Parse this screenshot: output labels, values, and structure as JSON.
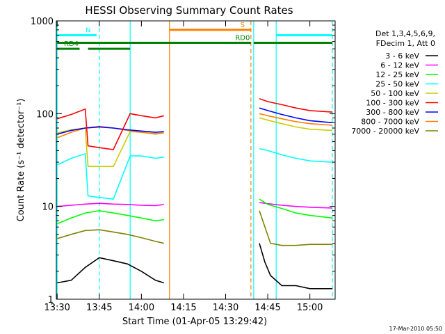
{
  "chart_data": {
    "type": "line",
    "title": "HESSI Observing Summary Count Rates",
    "xlabel": "Start Time (01-Apr-05 13:29:42)",
    "ylabel": "Count Rate (s⁻¹ detector⁻¹)",
    "y_scale": "log",
    "ylim": [
      1,
      1000
    ],
    "xlim": [
      "13:29:42",
      "15:09:00"
    ],
    "x_ticks": [
      "13:30",
      "13:45",
      "14:00",
      "14:15",
      "14:30",
      "14:45",
      "15:00"
    ],
    "y_ticks": [
      "1",
      "10",
      "100",
      "1000"
    ],
    "legend_header": [
      "Det 1,3,4,5,6,9,",
      "FDecim 1, Att 0"
    ],
    "legend_position": "right",
    "series": [
      {
        "name": "3 - 6 keV",
        "color": "#000000",
        "points": [
          [
            "13:30",
            1.5
          ],
          [
            "13:35",
            1.6
          ],
          [
            "13:40",
            2.2
          ],
          [
            "13:45",
            2.8
          ],
          [
            "13:50",
            2.6
          ],
          [
            "13:55",
            2.4
          ],
          [
            "14:00",
            2.0
          ],
          [
            "14:05",
            1.6
          ],
          [
            "14:08",
            1.5
          ],
          [
            "14:42",
            4.0
          ],
          [
            "14:44",
            2.5
          ],
          [
            "14:46",
            1.8
          ],
          [
            "14:50",
            1.4
          ],
          [
            "14:55",
            1.4
          ],
          [
            "15:00",
            1.3
          ],
          [
            "15:08",
            1.3
          ]
        ]
      },
      {
        "name": "6 - 12 keV",
        "color": "#ff00ff",
        "points": [
          [
            "13:30",
            10
          ],
          [
            "13:35",
            10.3
          ],
          [
            "13:40",
            10.6
          ],
          [
            "13:45",
            10.8
          ],
          [
            "13:50",
            10.6
          ],
          [
            "13:55",
            10.5
          ],
          [
            "14:00",
            10.3
          ],
          [
            "14:05",
            10.2
          ],
          [
            "14:08",
            10.5
          ],
          [
            "14:42",
            11
          ],
          [
            "14:45",
            10.7
          ],
          [
            "14:50",
            10.3
          ],
          [
            "14:55",
            10
          ],
          [
            "15:00",
            9.8
          ],
          [
            "15:08",
            9.6
          ]
        ]
      },
      {
        "name": "12 - 25 keV",
        "color": "#00ff00",
        "points": [
          [
            "13:30",
            6.5
          ],
          [
            "13:35",
            7.5
          ],
          [
            "13:40",
            8.5
          ],
          [
            "13:45",
            9.0
          ],
          [
            "13:50",
            8.5
          ],
          [
            "13:55",
            8.0
          ],
          [
            "14:00",
            7.5
          ],
          [
            "14:05",
            7.0
          ],
          [
            "14:08",
            7.2
          ],
          [
            "14:42",
            12
          ],
          [
            "14:45",
            10.5
          ],
          [
            "14:50",
            9.5
          ],
          [
            "14:55",
            8.5
          ],
          [
            "15:00",
            8.0
          ],
          [
            "15:08",
            7.5
          ]
        ]
      },
      {
        "name": "25 - 50 keV",
        "color": "#00ffff",
        "points": [
          [
            "13:30",
            28
          ],
          [
            "13:35",
            33
          ],
          [
            "13:40",
            37
          ],
          [
            "13:41",
            13
          ],
          [
            "13:45",
            12.5
          ],
          [
            "13:50",
            12
          ],
          [
            "13:56",
            35
          ],
          [
            "14:00",
            35
          ],
          [
            "14:05",
            33
          ],
          [
            "14:08",
            34
          ],
          [
            "14:42",
            42
          ],
          [
            "14:45",
            40
          ],
          [
            "14:50",
            36
          ],
          [
            "14:55",
            33
          ],
          [
            "15:00",
            31
          ],
          [
            "15:08",
            30
          ]
        ]
      },
      {
        "name": "50 - 100 keV",
        "color": "#cccc00",
        "points": [
          [
            "13:30",
            62
          ],
          [
            "13:35",
            67
          ],
          [
            "13:40",
            70
          ],
          [
            "13:41",
            27
          ],
          [
            "13:45",
            27
          ],
          [
            "13:50",
            27
          ],
          [
            "13:56",
            64
          ],
          [
            "14:00",
            63
          ],
          [
            "14:05",
            60
          ],
          [
            "14:08",
            62
          ],
          [
            "14:42",
            90
          ],
          [
            "14:45",
            85
          ],
          [
            "14:50",
            78
          ],
          [
            "14:55",
            72
          ],
          [
            "15:00",
            68
          ],
          [
            "15:08",
            66
          ]
        ]
      },
      {
        "name": "100 - 300 keV",
        "color": "#ff0000",
        "points": [
          [
            "13:30",
            88
          ],
          [
            "13:35",
            98
          ],
          [
            "13:40",
            112
          ],
          [
            "13:41",
            45
          ],
          [
            "13:45",
            43
          ],
          [
            "13:50",
            41
          ],
          [
            "13:56",
            100
          ],
          [
            "14:00",
            95
          ],
          [
            "14:05",
            90
          ],
          [
            "14:08",
            95
          ],
          [
            "14:42",
            145
          ],
          [
            "14:45",
            135
          ],
          [
            "14:50",
            125
          ],
          [
            "14:55",
            115
          ],
          [
            "15:00",
            108
          ],
          [
            "15:08",
            104
          ]
        ]
      },
      {
        "name": "300 - 800 keV",
        "color": "#0000ff",
        "points": [
          [
            "13:30",
            60
          ],
          [
            "13:35",
            66
          ],
          [
            "13:40",
            70
          ],
          [
            "13:45",
            72
          ],
          [
            "13:50",
            70
          ],
          [
            "13:55",
            67
          ],
          [
            "14:00",
            65
          ],
          [
            "14:05",
            63
          ],
          [
            "14:08",
            64
          ],
          [
            "14:42",
            115
          ],
          [
            "14:45",
            108
          ],
          [
            "14:50",
            98
          ],
          [
            "14:55",
            90
          ],
          [
            "15:00",
            84
          ],
          [
            "15:08",
            80
          ]
        ]
      },
      {
        "name": "800 - 7000 keV",
        "color": "#ff8000",
        "points": [
          [
            "13:30",
            55
          ],
          [
            "13:35",
            63
          ],
          [
            "13:40",
            70
          ],
          [
            "13:45",
            73
          ],
          [
            "13:50",
            70
          ],
          [
            "13:55",
            66
          ],
          [
            "14:00",
            63
          ],
          [
            "14:05",
            61
          ],
          [
            "14:08",
            62
          ],
          [
            "14:42",
            100
          ],
          [
            "14:45",
            95
          ],
          [
            "14:50",
            88
          ],
          [
            "14:55",
            82
          ],
          [
            "15:00",
            78
          ],
          [
            "15:08",
            75
          ]
        ]
      },
      {
        "name": "7000 - 20000 keV",
        "color": "#808000",
        "points": [
          [
            "13:30",
            4.5
          ],
          [
            "13:35",
            5.0
          ],
          [
            "13:40",
            5.5
          ],
          [
            "13:45",
            5.6
          ],
          [
            "13:50",
            5.3
          ],
          [
            "13:55",
            5.0
          ],
          [
            "14:00",
            4.6
          ],
          [
            "14:05",
            4.2
          ],
          [
            "14:08",
            4.0
          ],
          [
            "14:42",
            9.0
          ],
          [
            "14:44",
            6.0
          ],
          [
            "14:46",
            4.0
          ],
          [
            "14:50",
            3.8
          ],
          [
            "14:55",
            3.8
          ],
          [
            "15:00",
            3.9
          ],
          [
            "15:08",
            3.9
          ]
        ]
      }
    ],
    "flags": [
      {
        "label": "N",
        "color": "#00ffff",
        "level": 700,
        "segments": [
          [
            "13:30",
            "13:44"
          ],
          [
            "14:48",
            "15:08"
          ]
        ]
      },
      {
        "label": "RD0",
        "color": "#008000",
        "level": 580,
        "segments": [
          [
            "13:30",
            "14:39"
          ],
          [
            "14:40",
            "15:08"
          ]
        ]
      },
      {
        "label": "RD4",
        "color": "#008000",
        "level": 500,
        "segments": [
          [
            "13:30",
            "13:38"
          ],
          [
            "13:41",
            "13:56"
          ]
        ]
      },
      {
        "label": "S",
        "color": "#ff8000",
        "level": 800,
        "segments": [
          [
            "14:10",
            "14:39"
          ]
        ]
      }
    ],
    "vertical_markers": [
      {
        "time": "13:30",
        "color": "#00ffff",
        "style": "solid"
      },
      {
        "time": "13:45",
        "color": "#00ffff",
        "style": "dashed"
      },
      {
        "time": "13:56",
        "color": "#00ffff",
        "style": "solid"
      },
      {
        "time": "14:10",
        "color": "#ff8000",
        "style": "solid"
      },
      {
        "time": "14:39",
        "color": "#ff8000",
        "style": "dashed"
      },
      {
        "time": "14:40",
        "color": "#00ffff",
        "style": "solid"
      },
      {
        "time": "14:48",
        "color": "#00ffff",
        "style": "solid"
      },
      {
        "time": "15:08",
        "color": "#00ffff",
        "style": "dashed"
      }
    ],
    "timestamp": "17-Mar-2010 05:50"
  }
}
